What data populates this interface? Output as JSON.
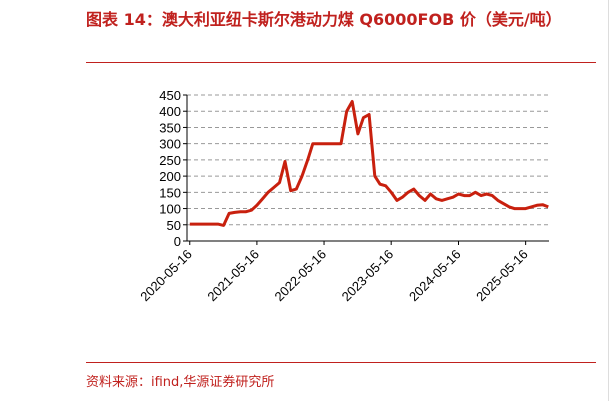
{
  "title": "图表 14：澳大利亚纽卡斯尔港动力煤 Q6000FOB 价（美元/吨）",
  "source": "资料来源：ifind,华源证券研究所",
  "chart_data": {
    "type": "line",
    "color": "#c8200e",
    "grid": true,
    "x": [
      "2020-05-16",
      "2020-06-16",
      "2020-07-16",
      "2020-08-16",
      "2020-09-16",
      "2020-10-16",
      "2020-11-16",
      "2020-12-16",
      "2021-01-16",
      "2021-02-16",
      "2021-03-16",
      "2021-04-16",
      "2021-05-16",
      "2021-06-16",
      "2021-07-16",
      "2021-08-16",
      "2021-09-16",
      "2021-10-16",
      "2021-11-16",
      "2021-12-16",
      "2022-01-16",
      "2022-02-16",
      "2022-03-16",
      "2022-04-16",
      "2022-05-16",
      "2022-06-16",
      "2022-07-16",
      "2022-08-16",
      "2022-09-16",
      "2022-10-16",
      "2022-11-16",
      "2022-12-16",
      "2023-01-16",
      "2023-02-16",
      "2023-03-16",
      "2023-04-16",
      "2023-05-16",
      "2023-06-16",
      "2023-07-16",
      "2023-08-16",
      "2023-09-16",
      "2023-10-16",
      "2023-11-16",
      "2023-12-16",
      "2024-01-16",
      "2024-02-16",
      "2024-03-16",
      "2024-04-16",
      "2024-05-16",
      "2024-06-16",
      "2024-07-16",
      "2024-08-16",
      "2024-09-16",
      "2024-10-16",
      "2024-11-16",
      "2024-12-16",
      "2025-01-16",
      "2025-02-16",
      "2025-03-16",
      "2025-04-16",
      "2025-05-16",
      "2025-06-16",
      "2025-07-16",
      "2025-08-16",
      "2025-09-16"
    ],
    "values": [
      52,
      52,
      52,
      52,
      52,
      52,
      48,
      85,
      88,
      90,
      90,
      95,
      110,
      130,
      150,
      165,
      180,
      245,
      155,
      160,
      200,
      250,
      300,
      300,
      300,
      300,
      300,
      300,
      400,
      430,
      330,
      380,
      390,
      200,
      175,
      170,
      150,
      125,
      135,
      150,
      160,
      140,
      125,
      145,
      130,
      125,
      130,
      135,
      145,
      140,
      140,
      150,
      140,
      145,
      140,
      125,
      115,
      105,
      100,
      100,
      100,
      105,
      110,
      112,
      105
    ],
    "xlim": [
      "2020-05-01",
      "2025-09-20"
    ],
    "xticks": [
      "2020-05-16",
      "2021-05-16",
      "2022-05-16",
      "2023-05-16",
      "2024-05-16",
      "2025-05-16"
    ],
    "ylim": [
      0,
      450
    ],
    "yticks": [
      0,
      50,
      100,
      150,
      200,
      250,
      300,
      350,
      400,
      450
    ]
  }
}
